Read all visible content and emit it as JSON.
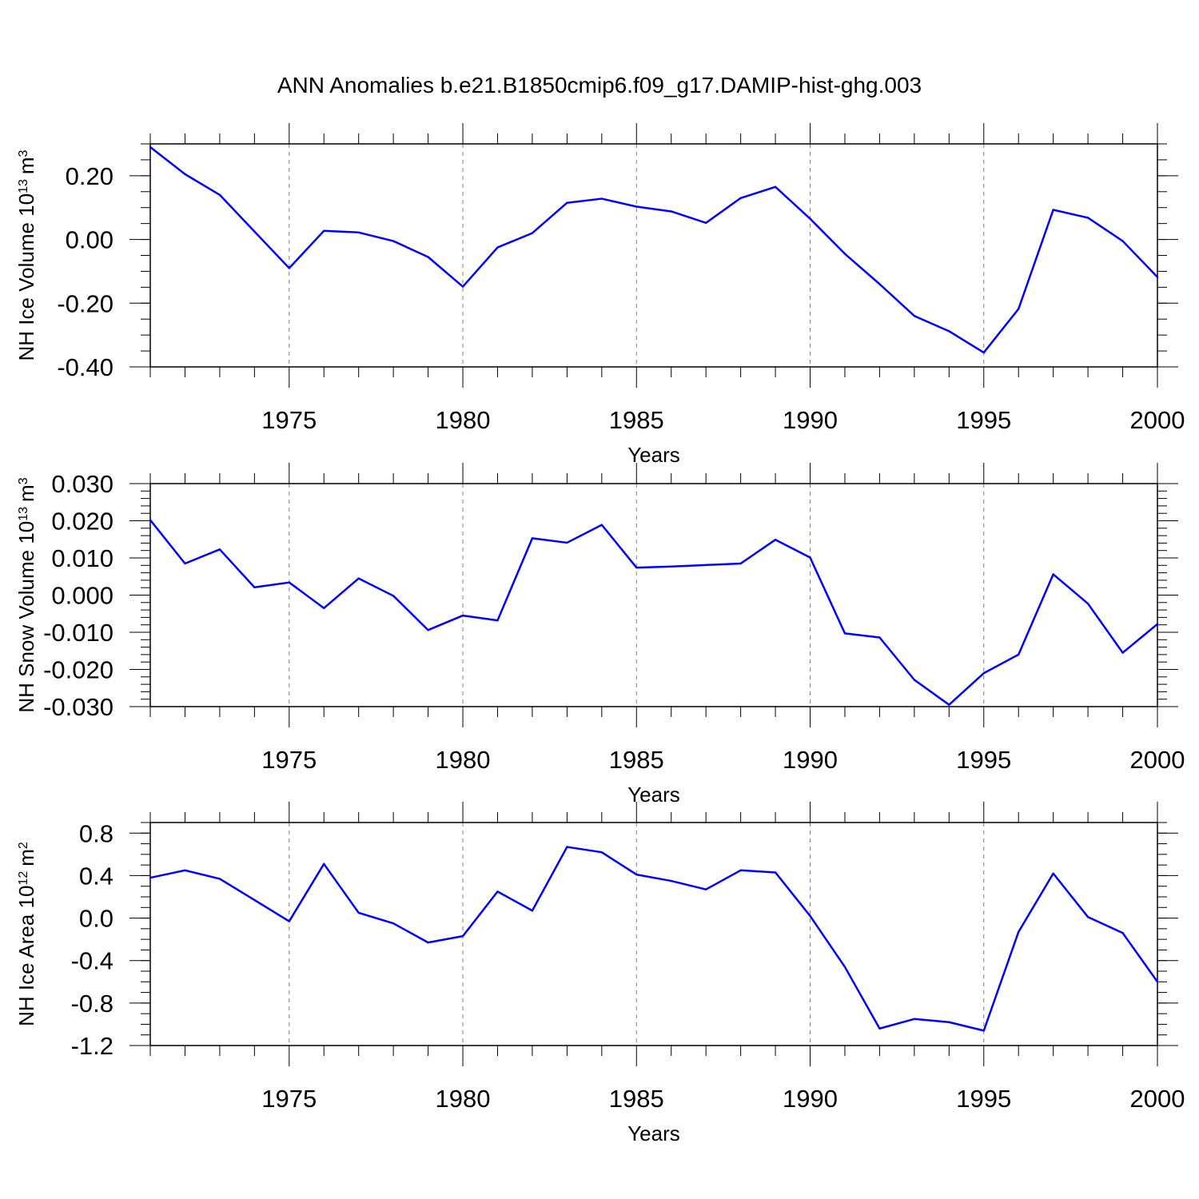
{
  "title": "ANN Anomalies b.e21.B1850cmip6.f09_g17.DAMIP-hist-ghg.003",
  "colors": {
    "line": "#0000ff",
    "axis": "#000000",
    "grid": "#808080",
    "background": "#ffffff"
  },
  "chart_data": [
    {
      "type": "line",
      "ylabel": "NH Ice Volume 10",
      "ylabel_sup": "13",
      "ylabel_unit": "m",
      "ylabel_unit_sup": "3",
      "xlabel": "Years",
      "xlim": [
        1971,
        2000
      ],
      "ylim": [
        -0.4,
        0.3
      ],
      "xticks": [
        1975,
        1980,
        1985,
        1990,
        1995,
        2000
      ],
      "xtick_labels": [
        "1975",
        "1980",
        "1985",
        "1990",
        "1995",
        "2000"
      ],
      "yticks": [
        0.2,
        0.0,
        -0.2,
        -0.4
      ],
      "ytick_labels": [
        "0.20",
        "0.00",
        "-0.20",
        "-0.40"
      ],
      "yminor_step": 0.05,
      "grid": "vertical dashed at major x ticks",
      "series": [
        {
          "name": "NH Ice Volume",
          "x": [
            1971,
            1972,
            1973,
            1974,
            1975,
            1976,
            1977,
            1978,
            1979,
            1980,
            1981,
            1982,
            1983,
            1984,
            1985,
            1986,
            1987,
            1988,
            1989,
            1990,
            1991,
            1992,
            1993,
            1994,
            1995,
            1996,
            1997,
            1998,
            1999,
            2000
          ],
          "values": [
            0.29,
            0.205,
            0.14,
            0.025,
            -0.09,
            0.027,
            0.022,
            -0.005,
            -0.055,
            -0.148,
            -0.025,
            0.02,
            0.115,
            0.128,
            0.103,
            0.088,
            0.052,
            0.13,
            0.165,
            0.065,
            -0.045,
            -0.14,
            -0.24,
            -0.288,
            -0.355,
            -0.218,
            0.093,
            0.068,
            -0.005,
            -0.118
          ]
        }
      ]
    },
    {
      "type": "line",
      "ylabel": "NH Snow Volume 10",
      "ylabel_sup": "13",
      "ylabel_unit": "m",
      "ylabel_unit_sup": "3",
      "xlabel": "Years",
      "xlim": [
        1971,
        2000
      ],
      "ylim": [
        -0.03,
        0.03
      ],
      "xticks": [
        1975,
        1980,
        1985,
        1990,
        1995,
        2000
      ],
      "xtick_labels": [
        "1975",
        "1980",
        "1985",
        "1990",
        "1995",
        "2000"
      ],
      "yticks": [
        0.03,
        0.02,
        0.01,
        0.0,
        -0.01,
        -0.02,
        -0.03
      ],
      "ytick_labels": [
        "0.030",
        "0.020",
        "0.010",
        "0.000",
        "-0.010",
        "-0.020",
        "-0.030"
      ],
      "yminor_step": 0.002,
      "grid": "vertical dashed at major x ticks",
      "series": [
        {
          "name": "NH Snow Volume",
          "x": [
            1971,
            1972,
            1973,
            1974,
            1975,
            1976,
            1977,
            1978,
            1979,
            1980,
            1981,
            1982,
            1983,
            1984,
            1985,
            1986,
            1987,
            1988,
            1989,
            1990,
            1991,
            1992,
            1993,
            1994,
            1995,
            1996,
            1997,
            1998,
            1999,
            2000
          ],
          "values": [
            0.0202,
            0.0085,
            0.0123,
            0.0021,
            0.0034,
            -0.0035,
            0.0045,
            -0.0002,
            -0.0094,
            -0.0055,
            -0.0068,
            0.0153,
            0.0141,
            0.0189,
            0.0074,
            0.0077,
            0.0081,
            0.0085,
            0.0149,
            0.0101,
            -0.0103,
            -0.0114,
            -0.0228,
            -0.0295,
            -0.021,
            -0.016,
            0.0056,
            -0.0023,
            -0.0155,
            -0.0078
          ]
        }
      ]
    },
    {
      "type": "line",
      "ylabel": "NH Ice Area 10",
      "ylabel_sup": "12",
      "ylabel_unit": "m",
      "ylabel_unit_sup": "2",
      "xlabel": "Years",
      "xlim": [
        1971,
        2000
      ],
      "ylim": [
        -1.2,
        0.9
      ],
      "xticks": [
        1975,
        1980,
        1985,
        1990,
        1995,
        2000
      ],
      "xtick_labels": [
        "1975",
        "1980",
        "1985",
        "1990",
        "1995",
        "2000"
      ],
      "yticks": [
        0.8,
        0.4,
        0.0,
        -0.4,
        -0.8,
        -1.2
      ],
      "ytick_labels": [
        "0.8",
        "0.4",
        "0.0",
        "-0.4",
        "-0.8",
        "-1.2"
      ],
      "yminor_step": 0.1,
      "grid": "vertical dashed at major x ticks",
      "series": [
        {
          "name": "NH Ice Area",
          "x": [
            1971,
            1972,
            1973,
            1974,
            1975,
            1976,
            1977,
            1978,
            1979,
            1980,
            1981,
            1982,
            1983,
            1984,
            1985,
            1986,
            1987,
            1988,
            1989,
            1990,
            1991,
            1992,
            1993,
            1994,
            1995,
            1996,
            1997,
            1998,
            1999,
            2000
          ],
          "values": [
            0.38,
            0.45,
            0.37,
            0.17,
            -0.03,
            0.51,
            0.05,
            -0.05,
            -0.23,
            -0.17,
            0.25,
            0.07,
            0.67,
            0.62,
            0.41,
            0.35,
            0.27,
            0.45,
            0.43,
            0.02,
            -0.46,
            -1.04,
            -0.95,
            -0.98,
            -1.06,
            -0.13,
            0.42,
            0.01,
            -0.14,
            -0.6
          ]
        }
      ]
    }
  ]
}
